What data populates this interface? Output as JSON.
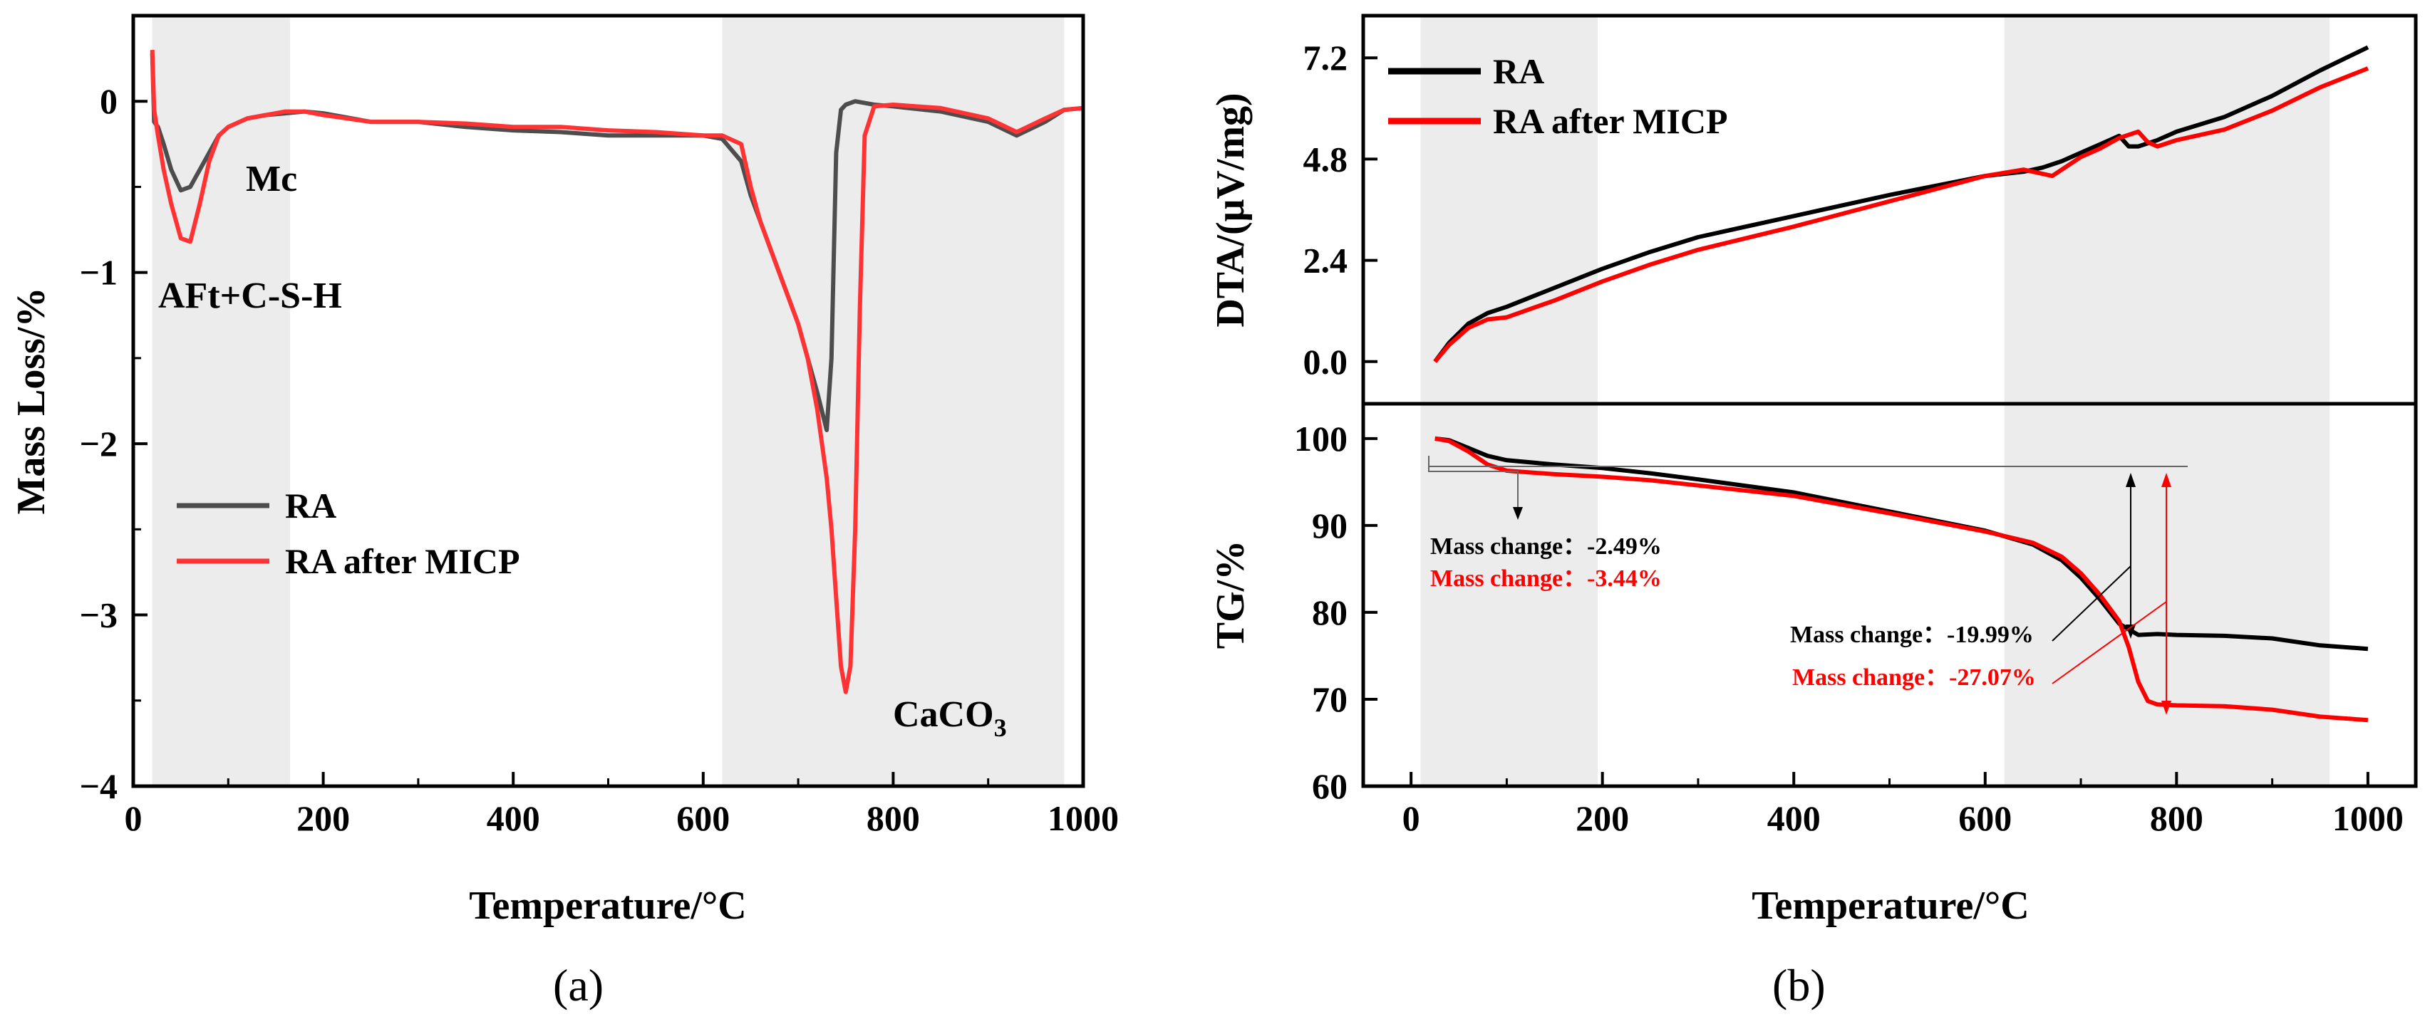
{
  "chart_data": [
    {
      "panel": "(a)",
      "type": "line",
      "title": "",
      "xlabel": "Temperature/°C",
      "ylabel": "Mass Loss/%",
      "xlim": [
        0,
        1000
      ],
      "ylim": [
        -4,
        0.5
      ],
      "xticks": [
        "0",
        "200",
        "400",
        "600",
        "800",
        "1000"
      ],
      "yticks": [
        "0",
        "−1",
        "−2",
        "−3",
        "−4"
      ],
      "shaded_regions": [
        [
          20,
          165
        ],
        [
          620,
          980
        ]
      ],
      "annotations": {
        "mc": "Mc",
        "aft": "AFt+C-S-H",
        "caco3": "CaCO",
        "caco3_sub": "3"
      },
      "legend": [
        "RA",
        "RA after MICP"
      ],
      "series": [
        {
          "name": "RA",
          "color": "#4d4d4d",
          "x": [
            20,
            22,
            26,
            32,
            40,
            50,
            60,
            70,
            80,
            90,
            100,
            120,
            140,
            160,
            180,
            200,
            250,
            300,
            350,
            400,
            450,
            500,
            550,
            600,
            620,
            640,
            650,
            660,
            670,
            680,
            690,
            700,
            710,
            720,
            730,
            735,
            740,
            745,
            750,
            760,
            780,
            800,
            850,
            900,
            930,
            960,
            980,
            1000
          ],
          "y": [
            0.28,
            -0.12,
            -0.15,
            -0.25,
            -0.4,
            -0.52,
            -0.5,
            -0.4,
            -0.3,
            -0.2,
            -0.15,
            -0.1,
            -0.08,
            -0.07,
            -0.06,
            -0.07,
            -0.12,
            -0.12,
            -0.15,
            -0.17,
            -0.18,
            -0.2,
            -0.2,
            -0.2,
            -0.22,
            -0.35,
            -0.55,
            -0.7,
            -0.85,
            -1.0,
            -1.15,
            -1.3,
            -1.5,
            -1.7,
            -1.92,
            -1.5,
            -0.3,
            -0.05,
            -0.02,
            0.0,
            -0.02,
            -0.03,
            -0.06,
            -0.12,
            -0.2,
            -0.12,
            -0.05,
            -0.04
          ]
        },
        {
          "name": "RA after MICP",
          "color": "#ff3333",
          "x": [
            20,
            22,
            26,
            32,
            40,
            50,
            60,
            70,
            80,
            90,
            100,
            120,
            140,
            160,
            180,
            200,
            250,
            300,
            350,
            400,
            450,
            500,
            550,
            600,
            620,
            640,
            650,
            660,
            680,
            700,
            710,
            720,
            730,
            735,
            740,
            745,
            750,
            755,
            760,
            765,
            770,
            780,
            800,
            850,
            900,
            930,
            960,
            980,
            1000
          ],
          "y": [
            0.3,
            -0.05,
            -0.2,
            -0.4,
            -0.6,
            -0.8,
            -0.82,
            -0.6,
            -0.35,
            -0.2,
            -0.15,
            -0.1,
            -0.08,
            -0.06,
            -0.06,
            -0.08,
            -0.12,
            -0.12,
            -0.13,
            -0.15,
            -0.15,
            -0.17,
            -0.18,
            -0.2,
            -0.2,
            -0.25,
            -0.5,
            -0.7,
            -1.0,
            -1.3,
            -1.5,
            -1.8,
            -2.2,
            -2.5,
            -2.9,
            -3.3,
            -3.45,
            -3.3,
            -2.5,
            -1.2,
            -0.2,
            -0.03,
            -0.02,
            -0.04,
            -0.1,
            -0.18,
            -0.1,
            -0.05,
            -0.04
          ]
        }
      ]
    },
    {
      "panel": "(b)",
      "type": "line",
      "xlabel": "Temperature/°C",
      "xlim": [
        -50,
        1050
      ],
      "xticks": [
        "0",
        "200",
        "400",
        "600",
        "800",
        "1000"
      ],
      "shaded_regions": [
        [
          10,
          195
        ],
        [
          620,
          960
        ]
      ],
      "subplots": [
        {
          "name": "DTA",
          "ylabel": "DTA/(μV/mg)",
          "ylim": [
            -1.0,
            8.2
          ],
          "yticks": [
            "0.0",
            "2.4",
            "4.8",
            "7.2"
          ],
          "legend": [
            "RA",
            "RA after MICP"
          ],
          "series": [
            {
              "name": "RA",
              "color": "#000000",
              "x": [
                25,
                40,
                60,
                80,
                100,
                150,
                200,
                250,
                300,
                400,
                500,
                600,
                640,
                660,
                680,
                700,
                720,
                740,
                750,
                760,
                780,
                800,
                850,
                900,
                950,
                1000
              ],
              "y": [
                0.0,
                0.45,
                0.9,
                1.15,
                1.3,
                1.75,
                2.2,
                2.6,
                2.95,
                3.45,
                3.95,
                4.4,
                4.5,
                4.6,
                4.75,
                4.95,
                5.15,
                5.35,
                5.1,
                5.1,
                5.25,
                5.45,
                5.8,
                6.3,
                6.9,
                7.45
              ]
            },
            {
              "name": "RA after MICP",
              "color": "#ff0000",
              "x": [
                25,
                40,
                60,
                80,
                100,
                150,
                200,
                250,
                300,
                400,
                500,
                600,
                640,
                660,
                670,
                680,
                700,
                720,
                740,
                760,
                770,
                780,
                800,
                850,
                900,
                950,
                1000
              ],
              "y": [
                0.0,
                0.4,
                0.8,
                1.0,
                1.05,
                1.45,
                1.9,
                2.3,
                2.65,
                3.2,
                3.8,
                4.4,
                4.55,
                4.45,
                4.4,
                4.55,
                4.85,
                5.05,
                5.3,
                5.45,
                5.2,
                5.1,
                5.25,
                5.5,
                5.95,
                6.5,
                6.95
              ]
            }
          ]
        },
        {
          "name": "TG",
          "ylabel": "TG/%",
          "ylim": [
            60,
            104
          ],
          "yticks": [
            "60",
            "70",
            "80",
            "90",
            "100"
          ],
          "annotations": {
            "ra_low": "Mass change：-2.49%",
            "micp_low": "Mass change：-3.44%",
            "ra_high": "Mass change：-19.99%",
            "micp_high": "Mass change：-27.07%"
          },
          "series": [
            {
              "name": "RA",
              "color": "#000000",
              "x": [
                25,
                40,
                60,
                80,
                100,
                150,
                200,
                250,
                300,
                400,
                500,
                600,
                650,
                680,
                700,
                720,
                740,
                760,
                780,
                800,
                850,
                900,
                950,
                1000
              ],
              "y": [
                100,
                99.8,
                98.9,
                98.0,
                97.5,
                97.0,
                96.6,
                96.0,
                95.3,
                93.8,
                91.6,
                89.4,
                87.8,
                86.0,
                84.0,
                81.5,
                78.7,
                77.4,
                77.5,
                77.4,
                77.3,
                77.0,
                76.2,
                75.8
              ]
            },
            {
              "name": "RA after MICP",
              "color": "#ff0000",
              "x": [
                25,
                40,
                60,
                80,
                100,
                150,
                200,
                250,
                300,
                400,
                500,
                600,
                650,
                680,
                700,
                720,
                740,
                750,
                760,
                770,
                780,
                800,
                850,
                900,
                950,
                1000
              ],
              "y": [
                100,
                99.7,
                98.5,
                97.0,
                96.3,
                95.9,
                95.6,
                95.2,
                94.6,
                93.4,
                91.4,
                89.3,
                88.0,
                86.4,
                84.5,
                82.0,
                79.0,
                76.0,
                72.0,
                69.8,
                69.4,
                69.3,
                69.2,
                68.8,
                68.0,
                67.6
              ]
            }
          ]
        }
      ]
    }
  ],
  "panel_labels": [
    "(a)",
    "(b)"
  ]
}
